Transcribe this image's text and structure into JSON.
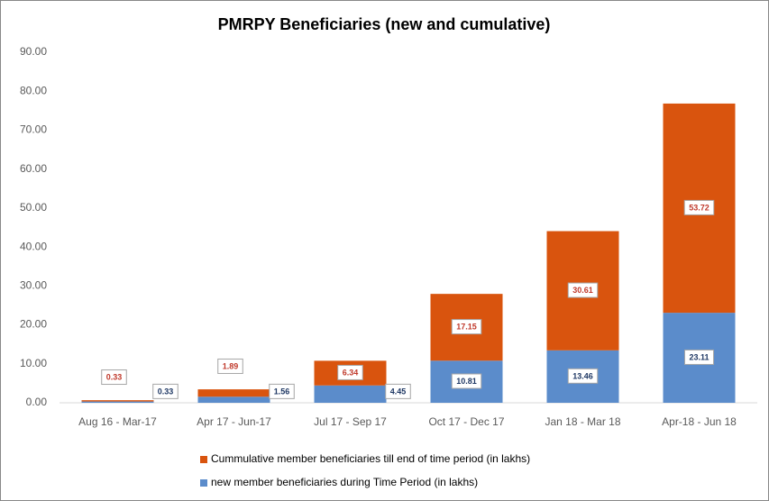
{
  "chart_data": {
    "type": "stacked_bar",
    "title": "PMRPY Beneficiaries (new and cumulative)",
    "categories": [
      "Aug 16 - Mar-17",
      "Apr 17 - Jun-17",
      "Jul 17 - Sep 17",
      "Oct 17 - Dec 17",
      "Jan 18 - Mar 18",
      "Apr-18 - Jun 18"
    ],
    "series": [
      {
        "name": "new member beneficiaries during Time Period (in lakhs)",
        "color": "#5b8ccb",
        "values": [
          0.33,
          1.56,
          4.45,
          10.81,
          13.46,
          23.11
        ]
      },
      {
        "name": "Cummulative member beneficiaries till end of time period (in lakhs)",
        "color": "#d9540e",
        "values": [
          0.33,
          1.89,
          6.34,
          17.15,
          30.61,
          53.72
        ]
      }
    ],
    "ylim": [
      0,
      90
    ],
    "yticks": [
      {
        "value": 0,
        "label": "0.00"
      },
      {
        "value": 10,
        "label": "10.00"
      },
      {
        "value": 20,
        "label": "20.00"
      },
      {
        "value": 30,
        "label": "30.00"
      },
      {
        "value": 40,
        "label": "40.00"
      },
      {
        "value": 50,
        "label": "50.00"
      },
      {
        "value": 60,
        "label": "60.00"
      },
      {
        "value": 70,
        "label": "70.00"
      },
      {
        "value": 80,
        "label": "80.00"
      },
      {
        "value": 90,
        "label": "90.00"
      }
    ],
    "grid": false
  }
}
